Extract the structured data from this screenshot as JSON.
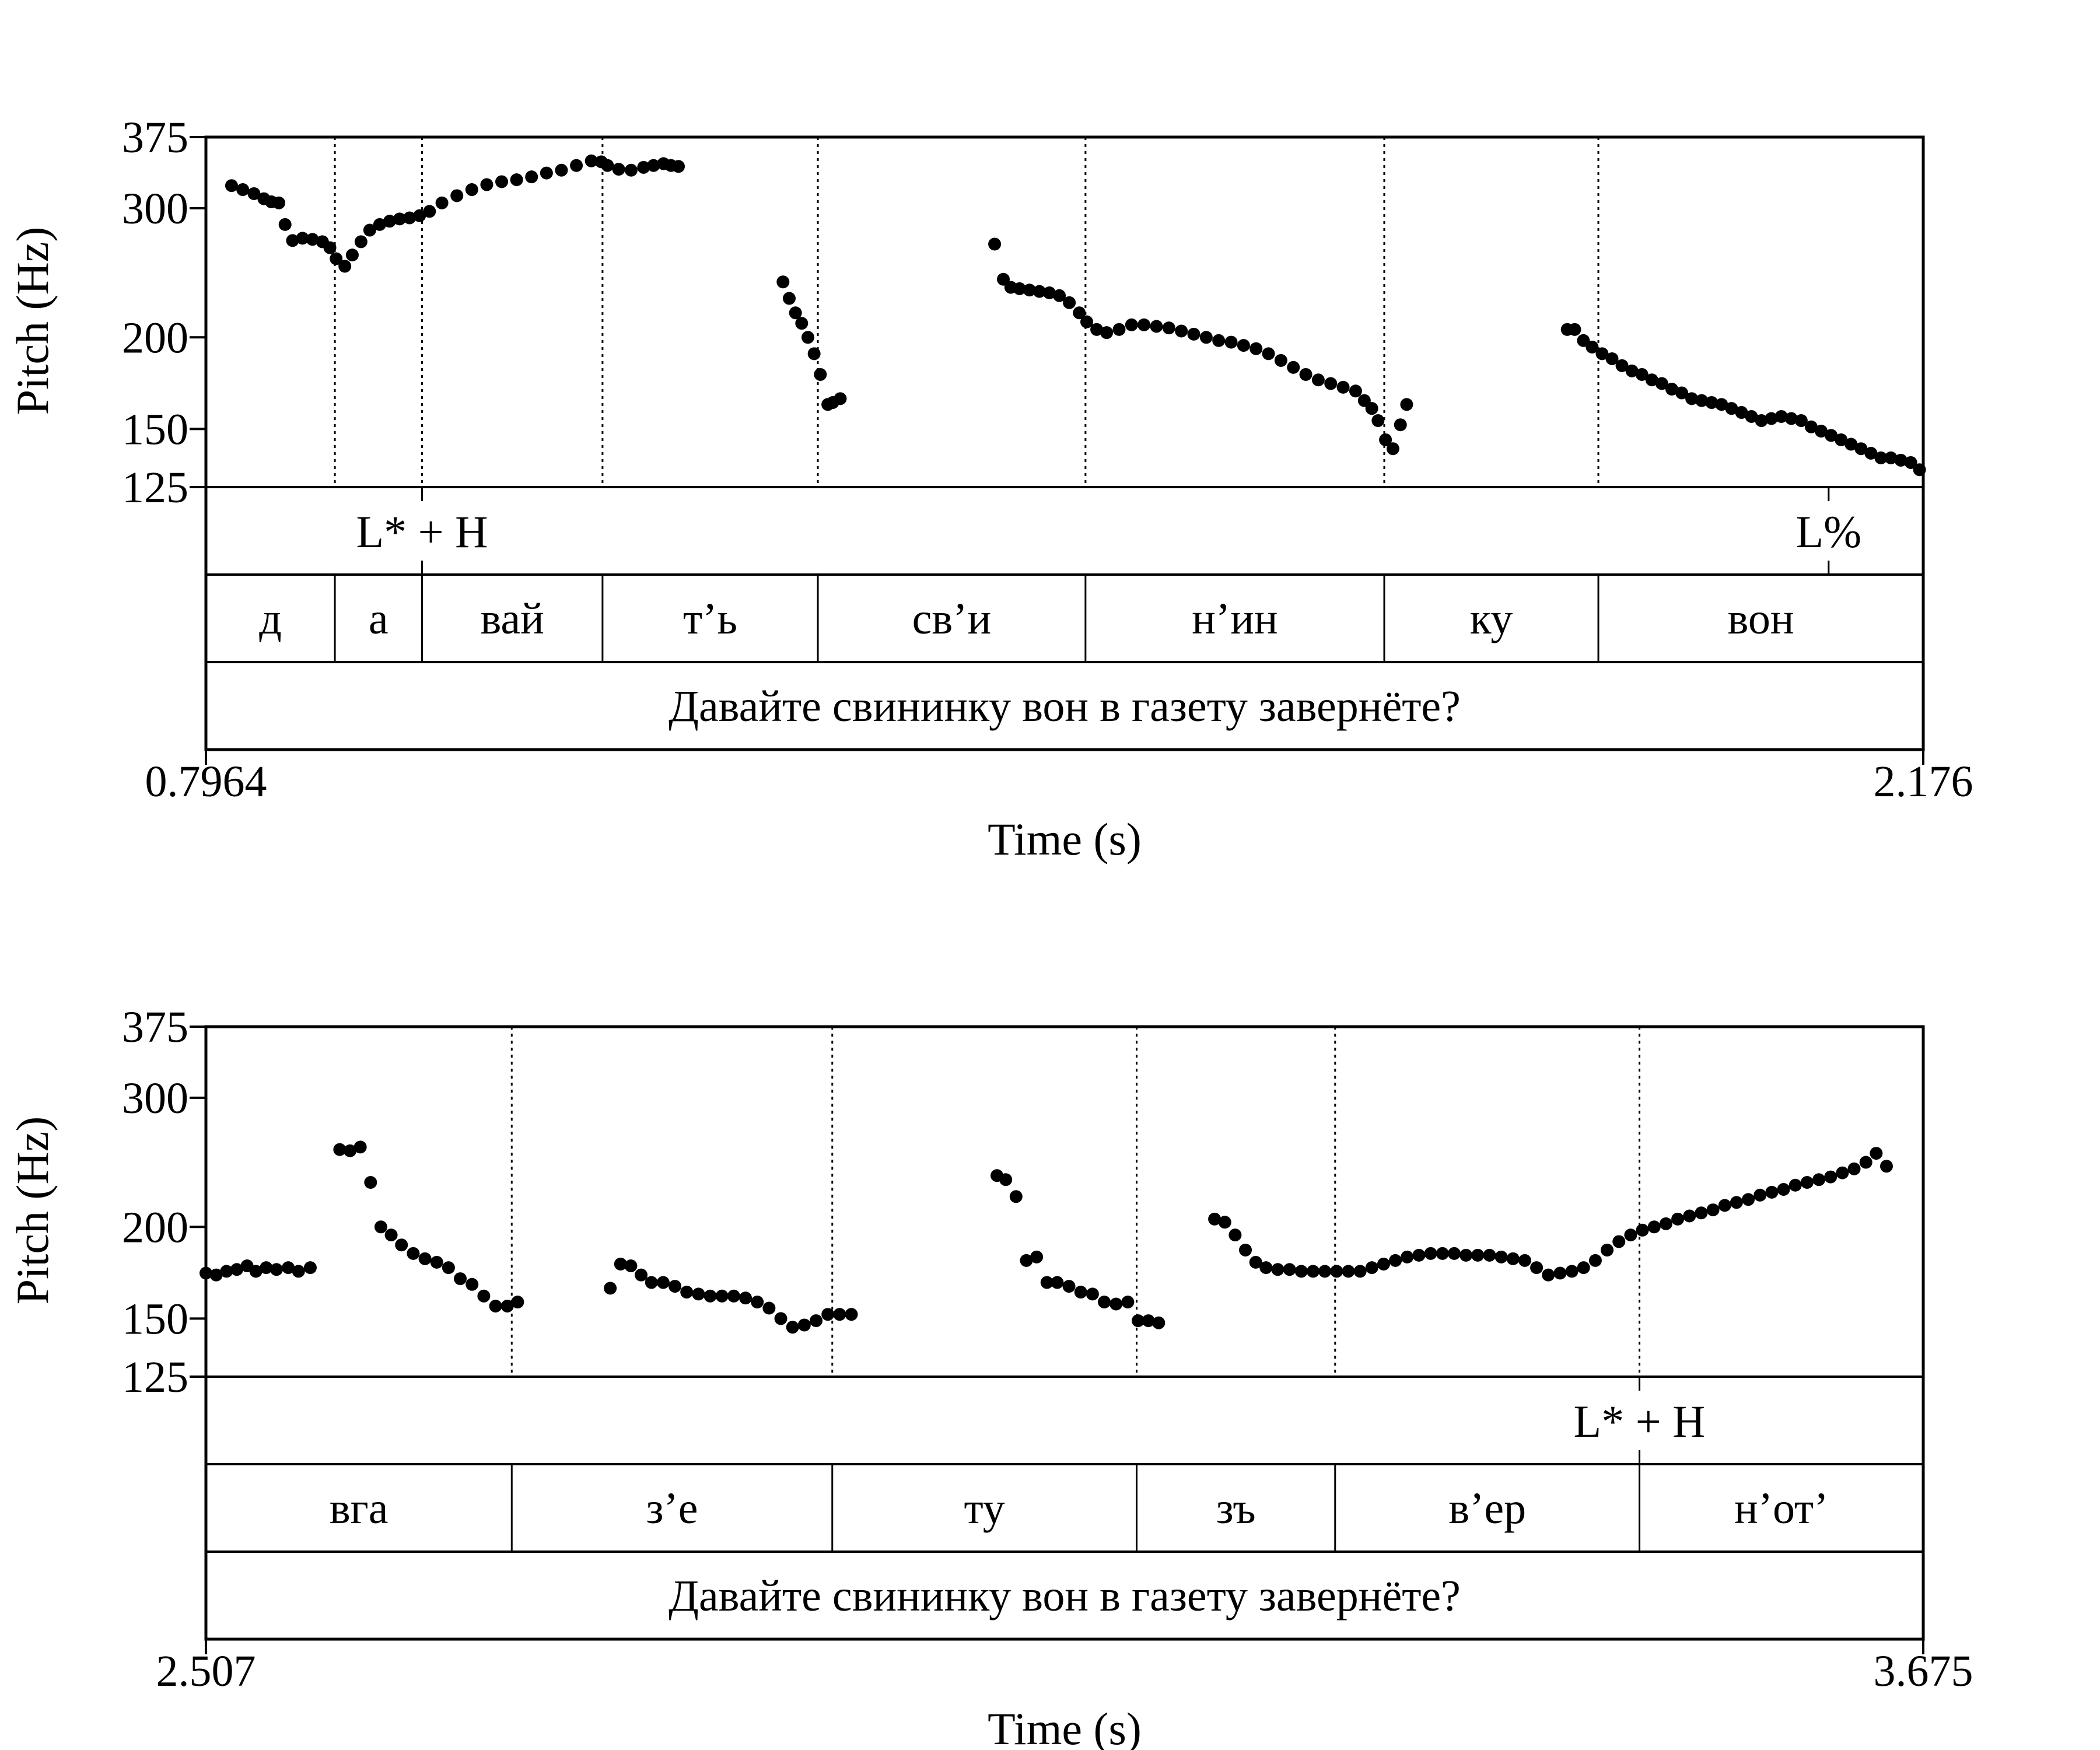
{
  "chart_data": [
    {
      "type": "scatter",
      "xlabel": "Time (s)",
      "ylabel": "Pitch (Hz)",
      "xlim": [
        0.7964,
        2.176
      ],
      "ylim": [
        125,
        375
      ],
      "yscale": "log",
      "yticks": [
        125,
        150,
        200,
        300,
        375
      ],
      "xtick_labels": [
        "0.7964",
        "2.176"
      ],
      "boundaries": [
        0.9,
        0.97,
        1.115,
        1.288,
        1.503,
        1.743,
        1.915
      ],
      "tones": [
        {
          "label": "L* + H",
          "time": 0.97
        },
        {
          "label": "L%",
          "time": 2.1
        }
      ],
      "syllables": [
        {
          "label": "д",
          "start": 0.7964,
          "end": 0.9
        },
        {
          "label": "а",
          "start": 0.9,
          "end": 0.97
        },
        {
          "label": "вай",
          "start": 0.97,
          "end": 1.115
        },
        {
          "label": "т’ь",
          "start": 1.115,
          "end": 1.288
        },
        {
          "label": "св’и",
          "start": 1.288,
          "end": 1.503
        },
        {
          "label": "н’ин",
          "start": 1.503,
          "end": 1.743
        },
        {
          "label": "ку",
          "start": 1.743,
          "end": 1.915
        },
        {
          "label": "вон",
          "start": 1.915,
          "end": 2.176
        }
      ],
      "sentence": "Давайте свининку вон в газету завернёте?",
      "contours": [
        {
          "t": [
            0.817,
            0.826,
            0.835,
            0.843,
            0.849,
            0.855,
            0.86,
            0.866,
            0.874,
            0.882,
            0.89,
            0.896,
            0.901,
            0.908,
            0.914,
            0.921,
            0.928,
            0.936,
            0.944,
            0.952,
            0.96,
            0.968,
            0.976,
            0.986,
            0.998,
            1.01,
            1.022,
            1.034,
            1.046,
            1.058,
            1.07,
            1.082,
            1.094,
            1.106,
            1.114,
            1.119,
            1.128,
            1.138,
            1.148,
            1.156,
            1.164,
            1.17,
            1.176
          ],
          "f": [
            322,
            318,
            314,
            309,
            306,
            305,
            285,
            271,
            273,
            272,
            270,
            265,
            256,
            250,
            259,
            270,
            280,
            285,
            288,
            290,
            291,
            293,
            297,
            305,
            312,
            318,
            323,
            326,
            328,
            331,
            335,
            338,
            343,
            348,
            347,
            343,
            339,
            338,
            341,
            343,
            345,
            343,
            342
          ]
        },
        {
          "t": [
            1.26,
            1.265,
            1.27,
            1.275,
            1.28,
            1.285,
            1.29,
            1.296,
            1.3,
            1.306
          ],
          "f": [
            238,
            226,
            216,
            209,
            200,
            190,
            178,
            162,
            163,
            165
          ]
        },
        {
          "t": [
            1.43,
            1.437,
            1.443,
            1.45,
            1.458,
            1.466,
            1.474,
            1.482,
            1.49,
            1.498,
            1.504,
            1.512,
            1.52,
            1.53,
            1.54,
            1.55,
            1.56,
            1.57,
            1.58,
            1.59,
            1.6,
            1.61,
            1.62,
            1.63,
            1.64,
            1.65,
            1.66,
            1.67,
            1.68,
            1.69,
            1.7,
            1.71,
            1.72,
            1.727,
            1.733,
            1.738,
            1.744,
            1.75,
            1.756,
            1.761
          ],
          "f": [
            268,
            240,
            234,
            233,
            232,
            231,
            230,
            228,
            223,
            216,
            210,
            205,
            203,
            205,
            208,
            208,
            207,
            206,
            204,
            202,
            200,
            198,
            197,
            195,
            193,
            190,
            186,
            182,
            178,
            175,
            173,
            171,
            169,
            164,
            160,
            154,
            145,
            141,
            152,
            162
          ]
        },
        {
          "t": [
            1.89,
            1.896,
            1.903,
            1.91,
            1.918,
            1.926,
            1.934,
            1.942,
            1.95,
            1.958,
            1.966,
            1.974,
            1.982,
            1.99,
            1.998,
            2.006,
            2.014,
            2.022,
            2.03,
            2.038,
            2.046,
            2.054,
            2.062,
            2.07,
            2.078,
            2.086,
            2.094,
            2.102,
            2.11,
            2.118,
            2.126,
            2.134,
            2.142,
            2.15,
            2.158,
            2.166,
            2.173
          ],
          "f": [
            205,
            205,
            198,
            194,
            190,
            187,
            183,
            180,
            178,
            175,
            173,
            170,
            168,
            165,
            164,
            163,
            162,
            160,
            158,
            156,
            154,
            155,
            156,
            155,
            154,
            151,
            149,
            147,
            145,
            143,
            141,
            139,
            137,
            137,
            136,
            135,
            132
          ]
        }
      ]
    },
    {
      "type": "scatter",
      "xlabel": "Time (s)",
      "ylabel": "Pitch (Hz)",
      "xlim": [
        2.507,
        3.675
      ],
      "ylim": [
        125,
        375
      ],
      "yscale": "log",
      "yticks": [
        125,
        150,
        200,
        300,
        375
      ],
      "xtick_labels": [
        "2.507",
        "3.675"
      ],
      "boundaries": [
        2.715,
        2.933,
        3.14,
        3.275,
        3.482
      ],
      "tones": [
        {
          "label": "L* + H",
          "time": 3.482
        }
      ],
      "syllables": [
        {
          "label": "вга",
          "start": 2.507,
          "end": 2.715
        },
        {
          "label": "з’е",
          "start": 2.715,
          "end": 2.933
        },
        {
          "label": "ту",
          "start": 2.933,
          "end": 3.14
        },
        {
          "label": "зъ",
          "start": 3.14,
          "end": 3.275
        },
        {
          "label": "в’ер",
          "start": 3.275,
          "end": 3.482
        },
        {
          "label": "н’от’",
          "start": 3.482,
          "end": 3.675
        }
      ],
      "sentence": "Давайте свининку вон в газету завернёте?",
      "contours": [
        {
          "t": [
            2.507,
            2.514,
            2.521,
            2.528,
            2.535,
            2.541,
            2.548,
            2.555,
            2.563,
            2.57,
            2.578
          ],
          "f": [
            173,
            172,
            174,
            175,
            177,
            174,
            176,
            175,
            176,
            174,
            176
          ]
        },
        {
          "t": [
            2.598,
            2.605,
            2.612,
            2.619,
            2.626,
            2.633,
            2.64,
            2.648,
            2.656,
            2.664,
            2.672,
            2.68,
            2.688,
            2.696,
            2.704,
            2.712,
            2.719
          ],
          "f": [
            255,
            254,
            257,
            230,
            200,
            195,
            189,
            184,
            181,
            179,
            176,
            170,
            167,
            161,
            156,
            156,
            158
          ]
        },
        {
          "t": [
            2.782,
            2.789,
            2.796,
            2.803,
            2.81,
            2.818,
            2.826,
            2.834,
            2.842,
            2.85,
            2.858,
            2.866,
            2.874,
            2.882,
            2.89,
            2.898,
            2.906,
            2.914,
            2.922,
            2.93,
            2.938,
            2.946
          ],
          "f": [
            165,
            178,
            177,
            172,
            168,
            168,
            166,
            163,
            162,
            161,
            161,
            161,
            160,
            158,
            155,
            150,
            146,
            147,
            149,
            152,
            152,
            152
          ]
        },
        {
          "t": [
            3.045,
            3.051,
            3.058,
            3.065,
            3.072,
            3.079,
            3.086,
            3.094,
            3.102,
            3.11,
            3.118,
            3.126,
            3.134,
            3.141,
            3.148,
            3.155
          ],
          "f": [
            235,
            232,
            220,
            180,
            182,
            168,
            168,
            166,
            163,
            162,
            158,
            157,
            158,
            149,
            149,
            148
          ]
        },
        {
          "t": [
            3.193,
            3.2,
            3.207,
            3.214,
            3.221,
            3.228,
            3.236,
            3.244,
            3.252,
            3.26,
            3.268,
            3.276,
            3.284,
            3.292,
            3.3,
            3.308,
            3.316,
            3.324,
            3.332,
            3.34,
            3.348,
            3.356,
            3.364,
            3.372,
            3.38,
            3.388,
            3.396,
            3.404,
            3.412,
            3.42,
            3.428,
            3.436,
            3.444,
            3.452,
            3.46,
            3.468,
            3.476,
            3.484,
            3.492,
            3.5,
            3.508,
            3.516,
            3.524,
            3.532,
            3.54,
            3.548,
            3.556,
            3.564,
            3.572,
            3.58,
            3.588,
            3.596,
            3.604,
            3.612,
            3.62,
            3.628,
            3.636,
            3.643,
            3.65
          ],
          "f": [
            205,
            203,
            195,
            186,
            179,
            176,
            175,
            175,
            174,
            174,
            174,
            174,
            174,
            174,
            176,
            178,
            180,
            182,
            183,
            184,
            184,
            184,
            183,
            183,
            183,
            182,
            181,
            180,
            176,
            172,
            173,
            174,
            176,
            180,
            186,
            191,
            195,
            198,
            200,
            202,
            205,
            207,
            209,
            211,
            214,
            216,
            218,
            221,
            223,
            225,
            228,
            230,
            232,
            234,
            237,
            240,
            245,
            252,
            242
          ]
        }
      ]
    }
  ]
}
